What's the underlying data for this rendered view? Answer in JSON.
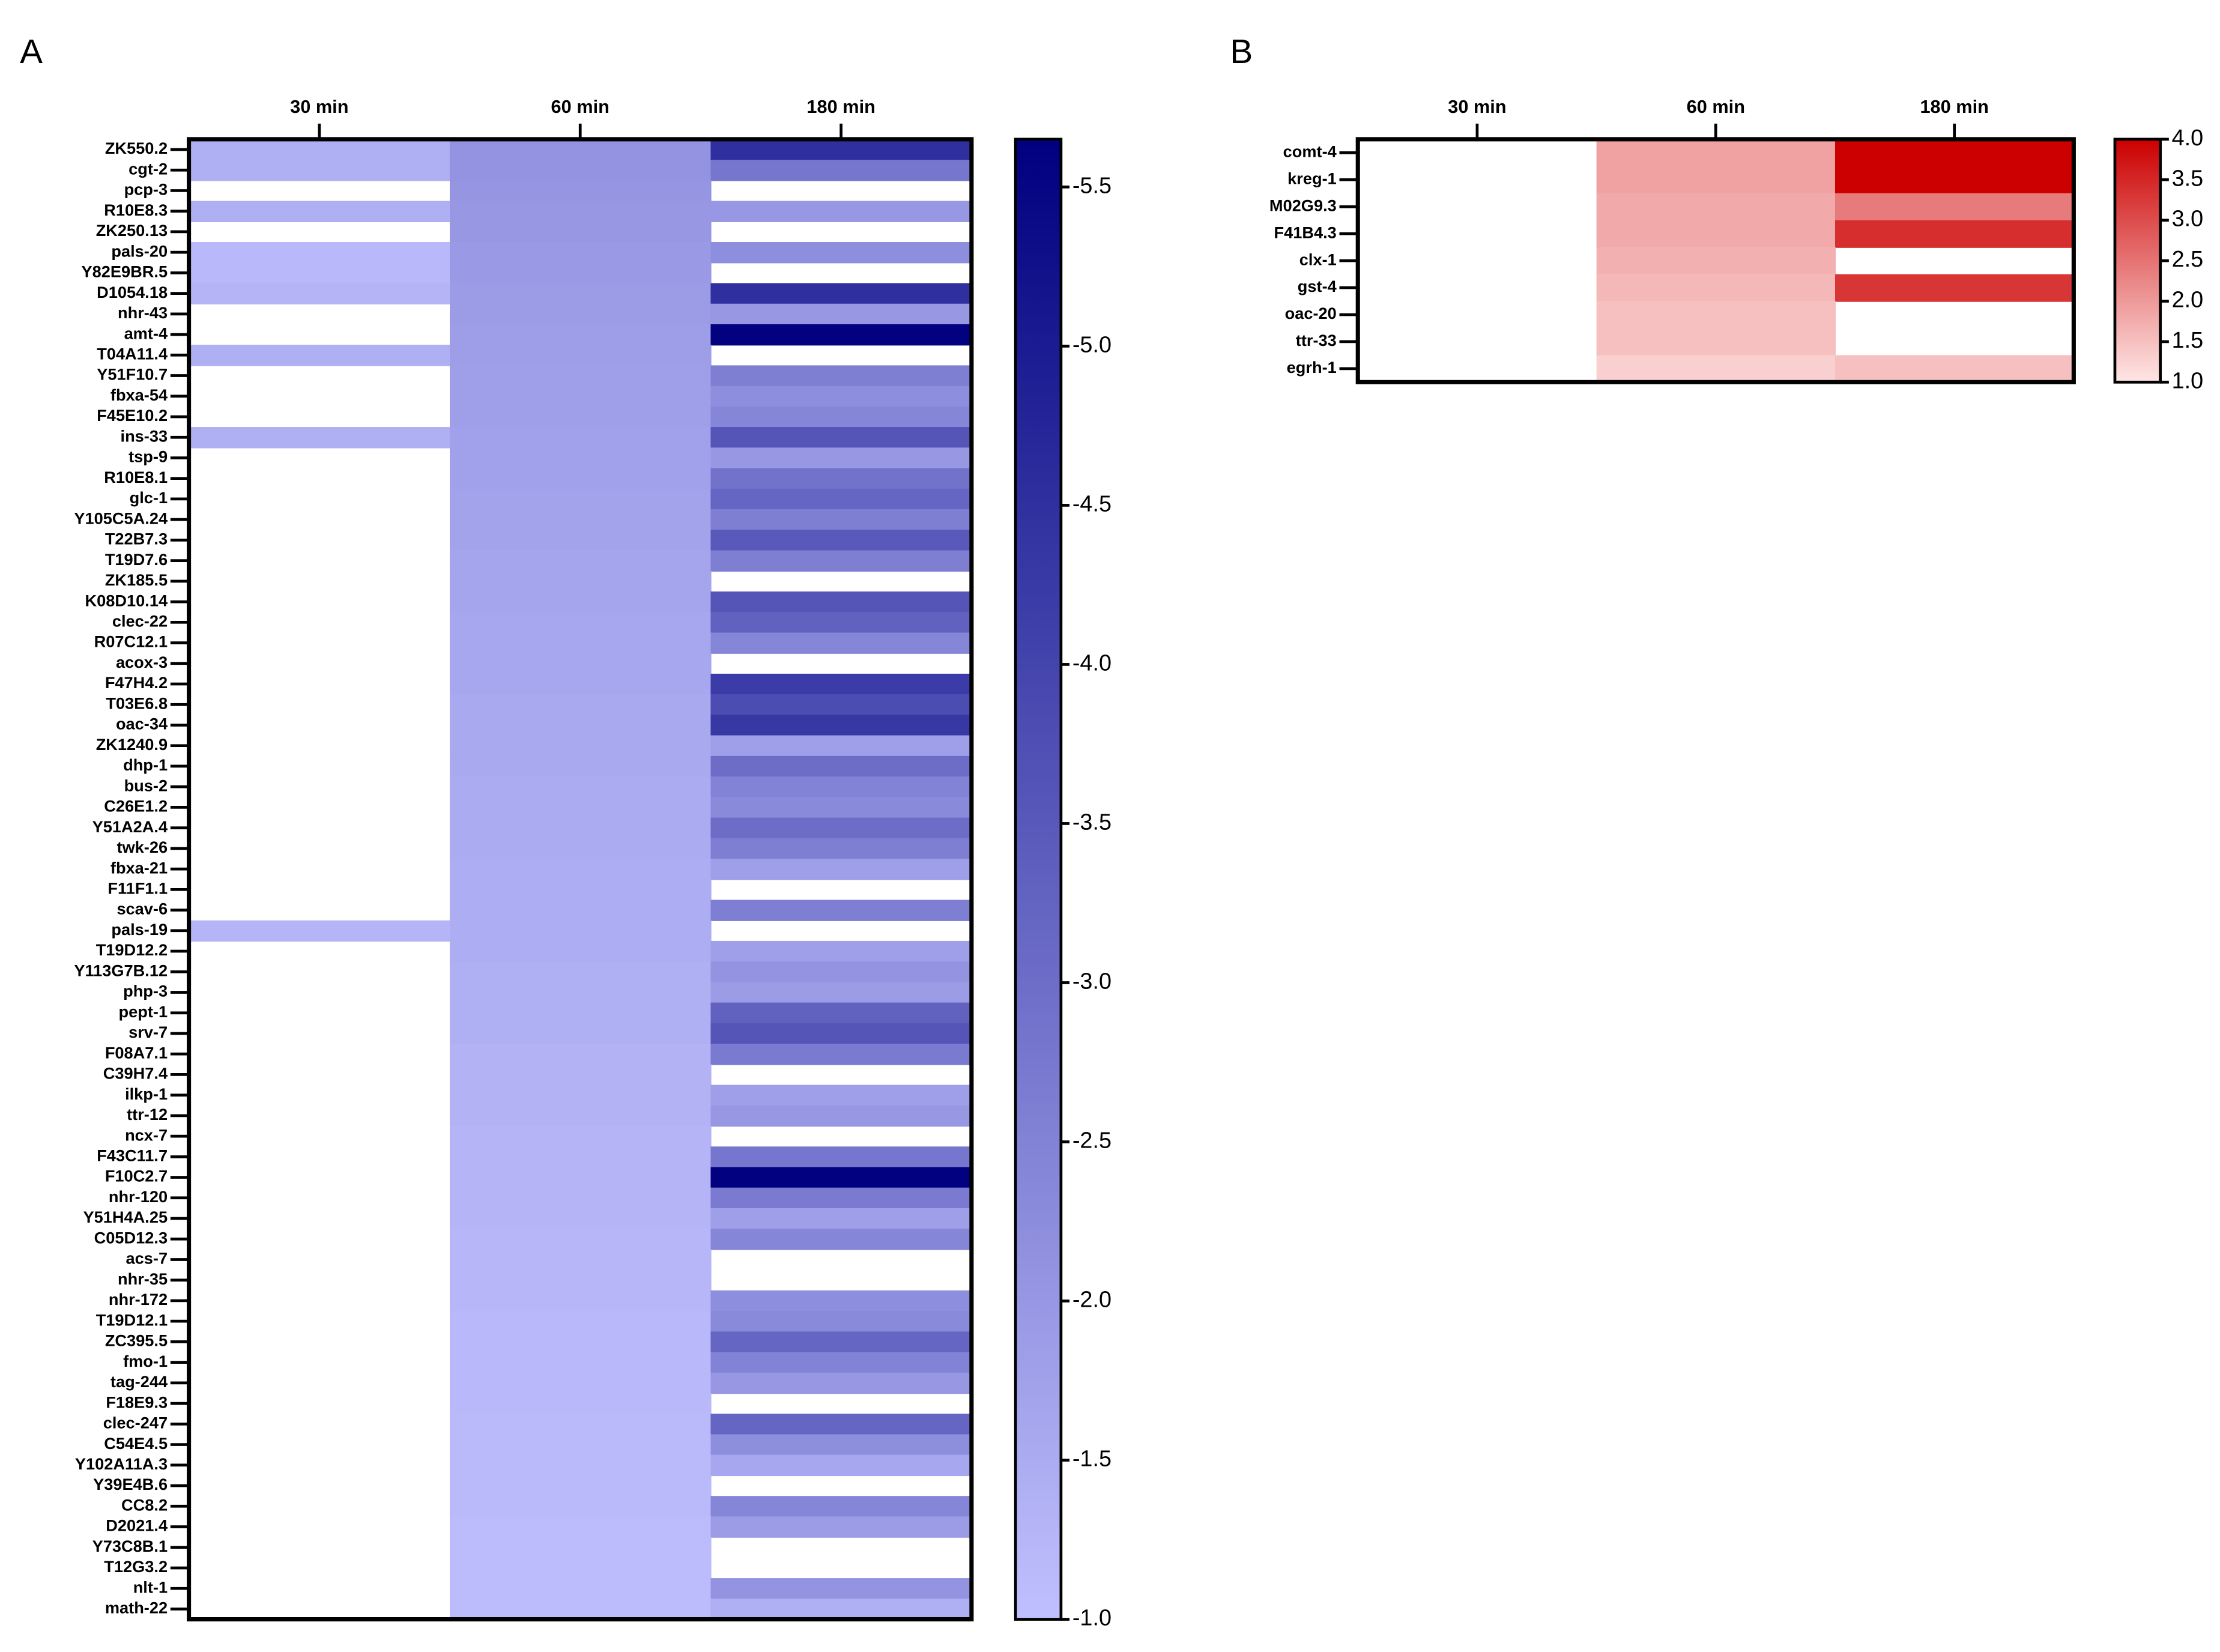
{
  "chart_data": [
    {
      "type": "heatmap",
      "title": "A",
      "columns": [
        "30 min",
        "60 min",
        "180 min"
      ],
      "rows": [
        "ZK550.2",
        "cgt-2",
        "pcp-3",
        "R10E8.3",
        "ZK250.13",
        "pals-20",
        "Y82E9BR.5",
        "D1054.18",
        "nhr-43",
        "amt-4",
        "T04A11.4",
        "Y51F10.7",
        "fbxa-54",
        "F45E10.2",
        "ins-33",
        "tsp-9",
        "R10E8.1",
        "glc-1",
        "Y105C5A.24",
        "T22B7.3",
        "T19D7.6",
        "ZK185.5",
        "K08D10.14",
        "clec-22",
        "R07C12.1",
        "acox-3",
        "F47H4.2",
        "T03E6.8",
        "oac-34",
        "ZK1240.9",
        "dhp-1",
        "bus-2",
        "C26E1.2",
        "Y51A2A.4",
        "twk-26",
        "fbxa-21",
        "F11F1.1",
        "scav-6",
        "pals-19",
        "T19D12.2",
        "Y113G7B.12",
        "php-3",
        "pept-1",
        "srv-7",
        "F08A7.1",
        "C39H7.4",
        "ilkp-1",
        "ttr-12",
        "ncx-7",
        "F43C11.7",
        "F10C2.7",
        "nhr-120",
        "Y51H4A.25",
        "C05D12.3",
        "acs-7",
        "nhr-35",
        "nhr-172",
        "T19D12.1",
        "ZC395.5",
        "fmo-1",
        "tag-244",
        "F18E9.3",
        "clec-247",
        "C54E4.5",
        "Y102A11A.3",
        "Y39E4B.6",
        "CC8.2",
        "D2021.4",
        "Y73C8B.1",
        "T12G3.2",
        "nlt-1",
        "math-22"
      ],
      "values": [
        [
          -1.4,
          -2.1,
          -4.5
        ],
        [
          -1.4,
          -2.1,
          -2.8
        ],
        [
          null,
          -2.05,
          null
        ],
        [
          -1.4,
          -2.0,
          -2.0
        ],
        [
          null,
          -2.0,
          null
        ],
        [
          -1.2,
          -1.95,
          -2.2
        ],
        [
          -1.2,
          -1.95,
          null
        ],
        [
          -1.3,
          -1.9,
          -4.5
        ],
        [
          null,
          -1.9,
          -2.0
        ],
        [
          null,
          -1.85,
          -5.6
        ],
        [
          -1.4,
          -1.85,
          null
        ],
        [
          null,
          -1.8,
          -2.6
        ],
        [
          null,
          -1.8,
          -2.2
        ],
        [
          null,
          -1.8,
          -2.4
        ],
        [
          -1.4,
          -1.75,
          -3.6
        ],
        [
          null,
          -1.75,
          -2.0
        ],
        [
          null,
          -1.75,
          -2.9
        ],
        [
          null,
          -1.7,
          -3.2
        ],
        [
          null,
          -1.7,
          -2.6
        ],
        [
          null,
          -1.7,
          -3.5
        ],
        [
          null,
          -1.65,
          -2.6
        ],
        [
          null,
          -1.65,
          null
        ],
        [
          null,
          -1.65,
          -3.6
        ],
        [
          null,
          -1.6,
          -3.3
        ],
        [
          null,
          -1.6,
          -2.4
        ],
        [
          null,
          -1.6,
          null
        ],
        [
          null,
          -1.6,
          -4.2
        ],
        [
          null,
          -1.55,
          -3.8
        ],
        [
          null,
          -1.55,
          -4.3
        ],
        [
          null,
          -1.55,
          -1.8
        ],
        [
          null,
          -1.55,
          -3.0
        ],
        [
          null,
          -1.5,
          -2.5
        ],
        [
          null,
          -1.5,
          -2.3
        ],
        [
          null,
          -1.5,
          -3.0
        ],
        [
          null,
          -1.5,
          -2.6
        ],
        [
          null,
          -1.45,
          -1.8
        ],
        [
          null,
          -1.45,
          null
        ],
        [
          null,
          -1.45,
          -2.6
        ],
        [
          -1.3,
          -1.45,
          null
        ],
        [
          null,
          -1.45,
          -1.8
        ],
        [
          null,
          -1.4,
          -2.1
        ],
        [
          null,
          -1.4,
          -1.9
        ],
        [
          null,
          -1.4,
          -3.3
        ],
        [
          null,
          -1.4,
          -3.6
        ],
        [
          null,
          -1.35,
          -2.7
        ],
        [
          null,
          -1.35,
          null
        ],
        [
          null,
          -1.35,
          -1.8
        ],
        [
          null,
          -1.35,
          -2.0
        ],
        [
          null,
          -1.3,
          null
        ],
        [
          null,
          -1.3,
          -2.8
        ],
        [
          null,
          -1.3,
          -5.6
        ],
        [
          null,
          -1.3,
          -2.7
        ],
        [
          null,
          -1.3,
          -1.8
        ],
        [
          null,
          -1.25,
          -2.4
        ],
        [
          null,
          -1.25,
          null
        ],
        [
          null,
          -1.25,
          null
        ],
        [
          null,
          -1.25,
          -2.2
        ],
        [
          null,
          -1.2,
          -2.3
        ],
        [
          null,
          -1.2,
          -3.2
        ],
        [
          null,
          -1.2,
          -2.5
        ],
        [
          null,
          -1.2,
          -2.0
        ],
        [
          null,
          -1.2,
          null
        ],
        [
          null,
          -1.15,
          -3.2
        ],
        [
          null,
          -1.15,
          -2.2
        ],
        [
          null,
          -1.15,
          -1.6
        ],
        [
          null,
          -1.15,
          null
        ],
        [
          null,
          -1.15,
          -2.4
        ],
        [
          null,
          -1.1,
          -1.9
        ],
        [
          null,
          -1.1,
          null
        ],
        [
          null,
          -1.1,
          null
        ],
        [
          null,
          -1.1,
          -2.1
        ],
        [
          null,
          -1.1,
          -1.4
        ]
      ],
      "clim": [
        -1.0,
        -5.65
      ],
      "colors": [
        "#c0c0ff",
        "#000080"
      ],
      "cticks": [
        {
          "value": -5.5,
          "label": "-5.5"
        },
        {
          "value": -5.0,
          "label": "-5.0"
        },
        {
          "value": -4.5,
          "label": "-4.5"
        },
        {
          "value": -4.0,
          "label": "-4.0"
        },
        {
          "value": -3.5,
          "label": "-3.5"
        },
        {
          "value": -3.0,
          "label": "-3.0"
        },
        {
          "value": -2.5,
          "label": "-2.5"
        },
        {
          "value": -2.0,
          "label": "-2.0"
        },
        {
          "value": -1.5,
          "label": "-1.5"
        },
        {
          "value": -1.0,
          "label": "-1.0"
        }
      ]
    },
    {
      "type": "heatmap",
      "title": "B",
      "columns": [
        "30 min",
        "60 min",
        "180 min"
      ],
      "rows": [
        "comt-4",
        "kreg-1",
        "M02G9.3",
        "F41B4.3",
        "clx-1",
        "gst-4",
        "oac-20",
        "ttr-33",
        "egrh-1"
      ],
      "values": [
        [
          null,
          1.9,
          4.0
        ],
        [
          null,
          1.9,
          4.0
        ],
        [
          null,
          1.8,
          2.4
        ],
        [
          null,
          1.8,
          3.4
        ],
        [
          null,
          1.7,
          null
        ],
        [
          null,
          1.6,
          3.3
        ],
        [
          null,
          1.5,
          null
        ],
        [
          null,
          1.5,
          null
        ],
        [
          null,
          1.3,
          1.5
        ]
      ],
      "clim": [
        1.0,
        4.0
      ],
      "colors": [
        "#ffe6e6",
        "#cc0000"
      ],
      "cticks": [
        {
          "value": 1.0,
          "label": "1.0"
        },
        {
          "value": 1.5,
          "label": "1.5"
        },
        {
          "value": 2.0,
          "label": "2.0"
        },
        {
          "value": 2.5,
          "label": "2.5"
        },
        {
          "value": 3.0,
          "label": "3.0"
        },
        {
          "value": 3.5,
          "label": "3.5"
        },
        {
          "value": 4.0,
          "label": "4.0"
        }
      ]
    }
  ]
}
